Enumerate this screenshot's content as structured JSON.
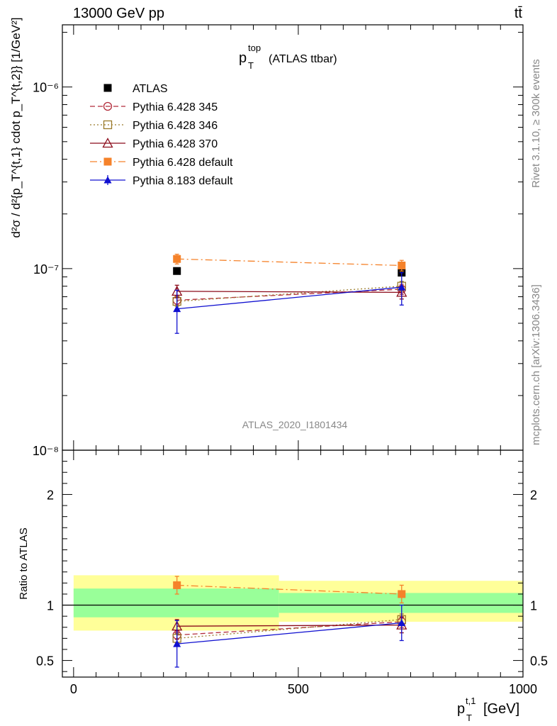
{
  "header": {
    "left": "13000 GeV pp",
    "right": "tt̄",
    "rivet": "Rivet 3.1.10, ≥ 300k events",
    "mcplots": "mcplots.cern.ch [arXiv:1306.3436]",
    "analysis": "ATLAS_2020_I1801434"
  },
  "chart_data": [
    {
      "type": "scatter",
      "panel": "main",
      "title_main": "p",
      "title_sup": "top",
      "title_sub": "T",
      "title_rest": "(ATLAS ttbar)",
      "yscale": "log",
      "ylim": [
        1e-08,
        2.2e-06
      ],
      "xlim": [
        -25,
        1000
      ],
      "ylabel": "d²σ / d²{p_T^{t,1} cdot p_T^{t,2}} [1/GeV²]",
      "ytick_labels": [
        "10⁻⁸",
        "10⁻⁷",
        "10⁻⁶"
      ],
      "x": [
        230,
        730
      ],
      "series": [
        {
          "name": "ATLAS",
          "values": [
            9.7e-08,
            9.5e-08
          ],
          "err": [
            0,
            0
          ],
          "color": "#000000",
          "marker": "filled-square",
          "line": "none"
        },
        {
          "name": "Pythia 6.428 345",
          "values": [
            6.7e-08,
            7.7e-08
          ],
          "err": [
            4e-09,
            5e-09
          ],
          "color": "#b22b3a",
          "marker": "open-circle",
          "line": "dashed"
        },
        {
          "name": "Pythia 6.428 346",
          "values": [
            6.6e-08,
            8e-08
          ],
          "err": [
            4e-09,
            5e-09
          ],
          "color": "#9a7a2a",
          "marker": "open-square",
          "line": "dotted"
        },
        {
          "name": "Pythia 6.428 370",
          "values": [
            7.5e-08,
            7.4e-08
          ],
          "err": [
            6e-09,
            6e-09
          ],
          "color": "#8b0b1a",
          "marker": "open-triangle",
          "line": "solid"
        },
        {
          "name": "Pythia 6.428 default",
          "values": [
            1.13e-07,
            1.04e-07
          ],
          "err": [
            7e-09,
            7e-09
          ],
          "color": "#f5822a",
          "marker": "filled-square",
          "line": "dashdot"
        },
        {
          "name": "Pythia 8.183 default",
          "values": [
            6e-08,
            7.9e-08
          ],
          "err": [
            1.6e-08,
            1.6e-08
          ],
          "color": "#1010d0",
          "marker": "filled-triangle",
          "line": "solid"
        }
      ]
    },
    {
      "type": "scatter",
      "panel": "ratio",
      "ylabel": "Ratio to ATLAS",
      "xlabel": "p_T^{t,1} [GeV]",
      "xlabel_main": "p",
      "xlabel_sup": "t,1",
      "xlabel_sub": "T",
      "xlabel_unit": "[GeV]",
      "ylim": [
        0.35,
        2.4
      ],
      "xlim": [
        -25,
        1000
      ],
      "yticks": [
        0.5,
        1,
        2
      ],
      "ytick_labels": [
        "0.5",
        "1",
        "2"
      ],
      "xticks": [
        0,
        500,
        1000
      ],
      "xtick_labels": [
        "0",
        "500",
        "1000"
      ],
      "bands": [
        {
          "x0": 0,
          "x1": 457,
          "inner": [
            0.89,
            1.15
          ],
          "outer": [
            0.77,
            1.27
          ]
        },
        {
          "x0": 457,
          "x1": 1000,
          "inner": [
            0.93,
            1.11
          ],
          "outer": [
            0.85,
            1.22
          ]
        }
      ],
      "x": [
        230,
        730
      ],
      "series": [
        {
          "name": "Pythia 6.428 345",
          "values": [
            0.73,
            0.85
          ],
          "err": [
            0.04,
            0.05
          ]
        },
        {
          "name": "Pythia 6.428 346",
          "values": [
            0.7,
            0.87
          ],
          "err": [
            0.04,
            0.05
          ]
        },
        {
          "name": "Pythia 6.428 370",
          "values": [
            0.81,
            0.82
          ],
          "err": [
            0.06,
            0.07
          ]
        },
        {
          "name": "Pythia 6.428 default",
          "values": [
            1.18,
            1.1
          ],
          "err": [
            0.08,
            0.08
          ]
        },
        {
          "name": "Pythia 8.183 default",
          "values": [
            0.65,
            0.84
          ],
          "err": [
            0.21,
            0.16
          ]
        }
      ]
    }
  ]
}
